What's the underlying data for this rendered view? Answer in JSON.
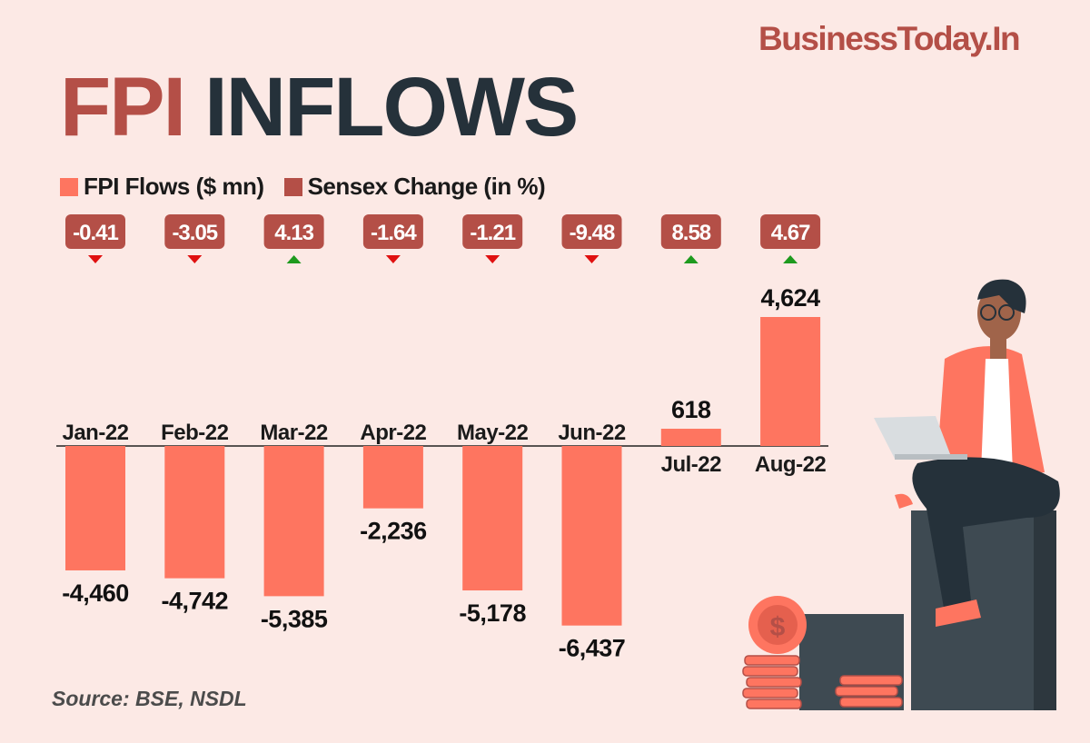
{
  "brand": "BusinessToday.In",
  "title": {
    "part1": "FPI",
    "part2": "INFLOWS"
  },
  "legend": [
    {
      "label": "FPI Flows ($ mn)",
      "color": "#fe7560"
    },
    {
      "label": "Sensex Change (in %)",
      "color": "#b44f47"
    }
  ],
  "source": "Source: BSE, NSDL",
  "colors": {
    "bar": "#fe7560",
    "badge": "#b44f47",
    "up": "#1e9a1e",
    "down": "#e01010",
    "background": "#fce9e5"
  },
  "chart_data": {
    "type": "bar",
    "categories": [
      "Jan-22",
      "Feb-22",
      "Mar-22",
      "Apr-22",
      "May-22",
      "Jun-22",
      "Jul-22",
      "Aug-22"
    ],
    "series": [
      {
        "name": "FPI Flows ($ mn)",
        "values": [
          -4460,
          -4742,
          -5385,
          -2236,
          -5178,
          -6437,
          618,
          4624
        ],
        "labels": [
          "-4,460",
          "-4,742",
          "-5,385",
          "-2,236",
          "-5,178",
          "-6,437",
          "618",
          "4,624"
        ]
      },
      {
        "name": "Sensex Change (in %)",
        "values": [
          -0.41,
          -3.05,
          4.13,
          -1.64,
          -1.21,
          -9.48,
          8.58,
          4.67
        ],
        "labels": [
          "-0.41",
          "-3.05",
          "4.13",
          "-1.64",
          "-1.21",
          "-9.48",
          "8.58",
          "4.67"
        ]
      }
    ],
    "grid": false
  }
}
